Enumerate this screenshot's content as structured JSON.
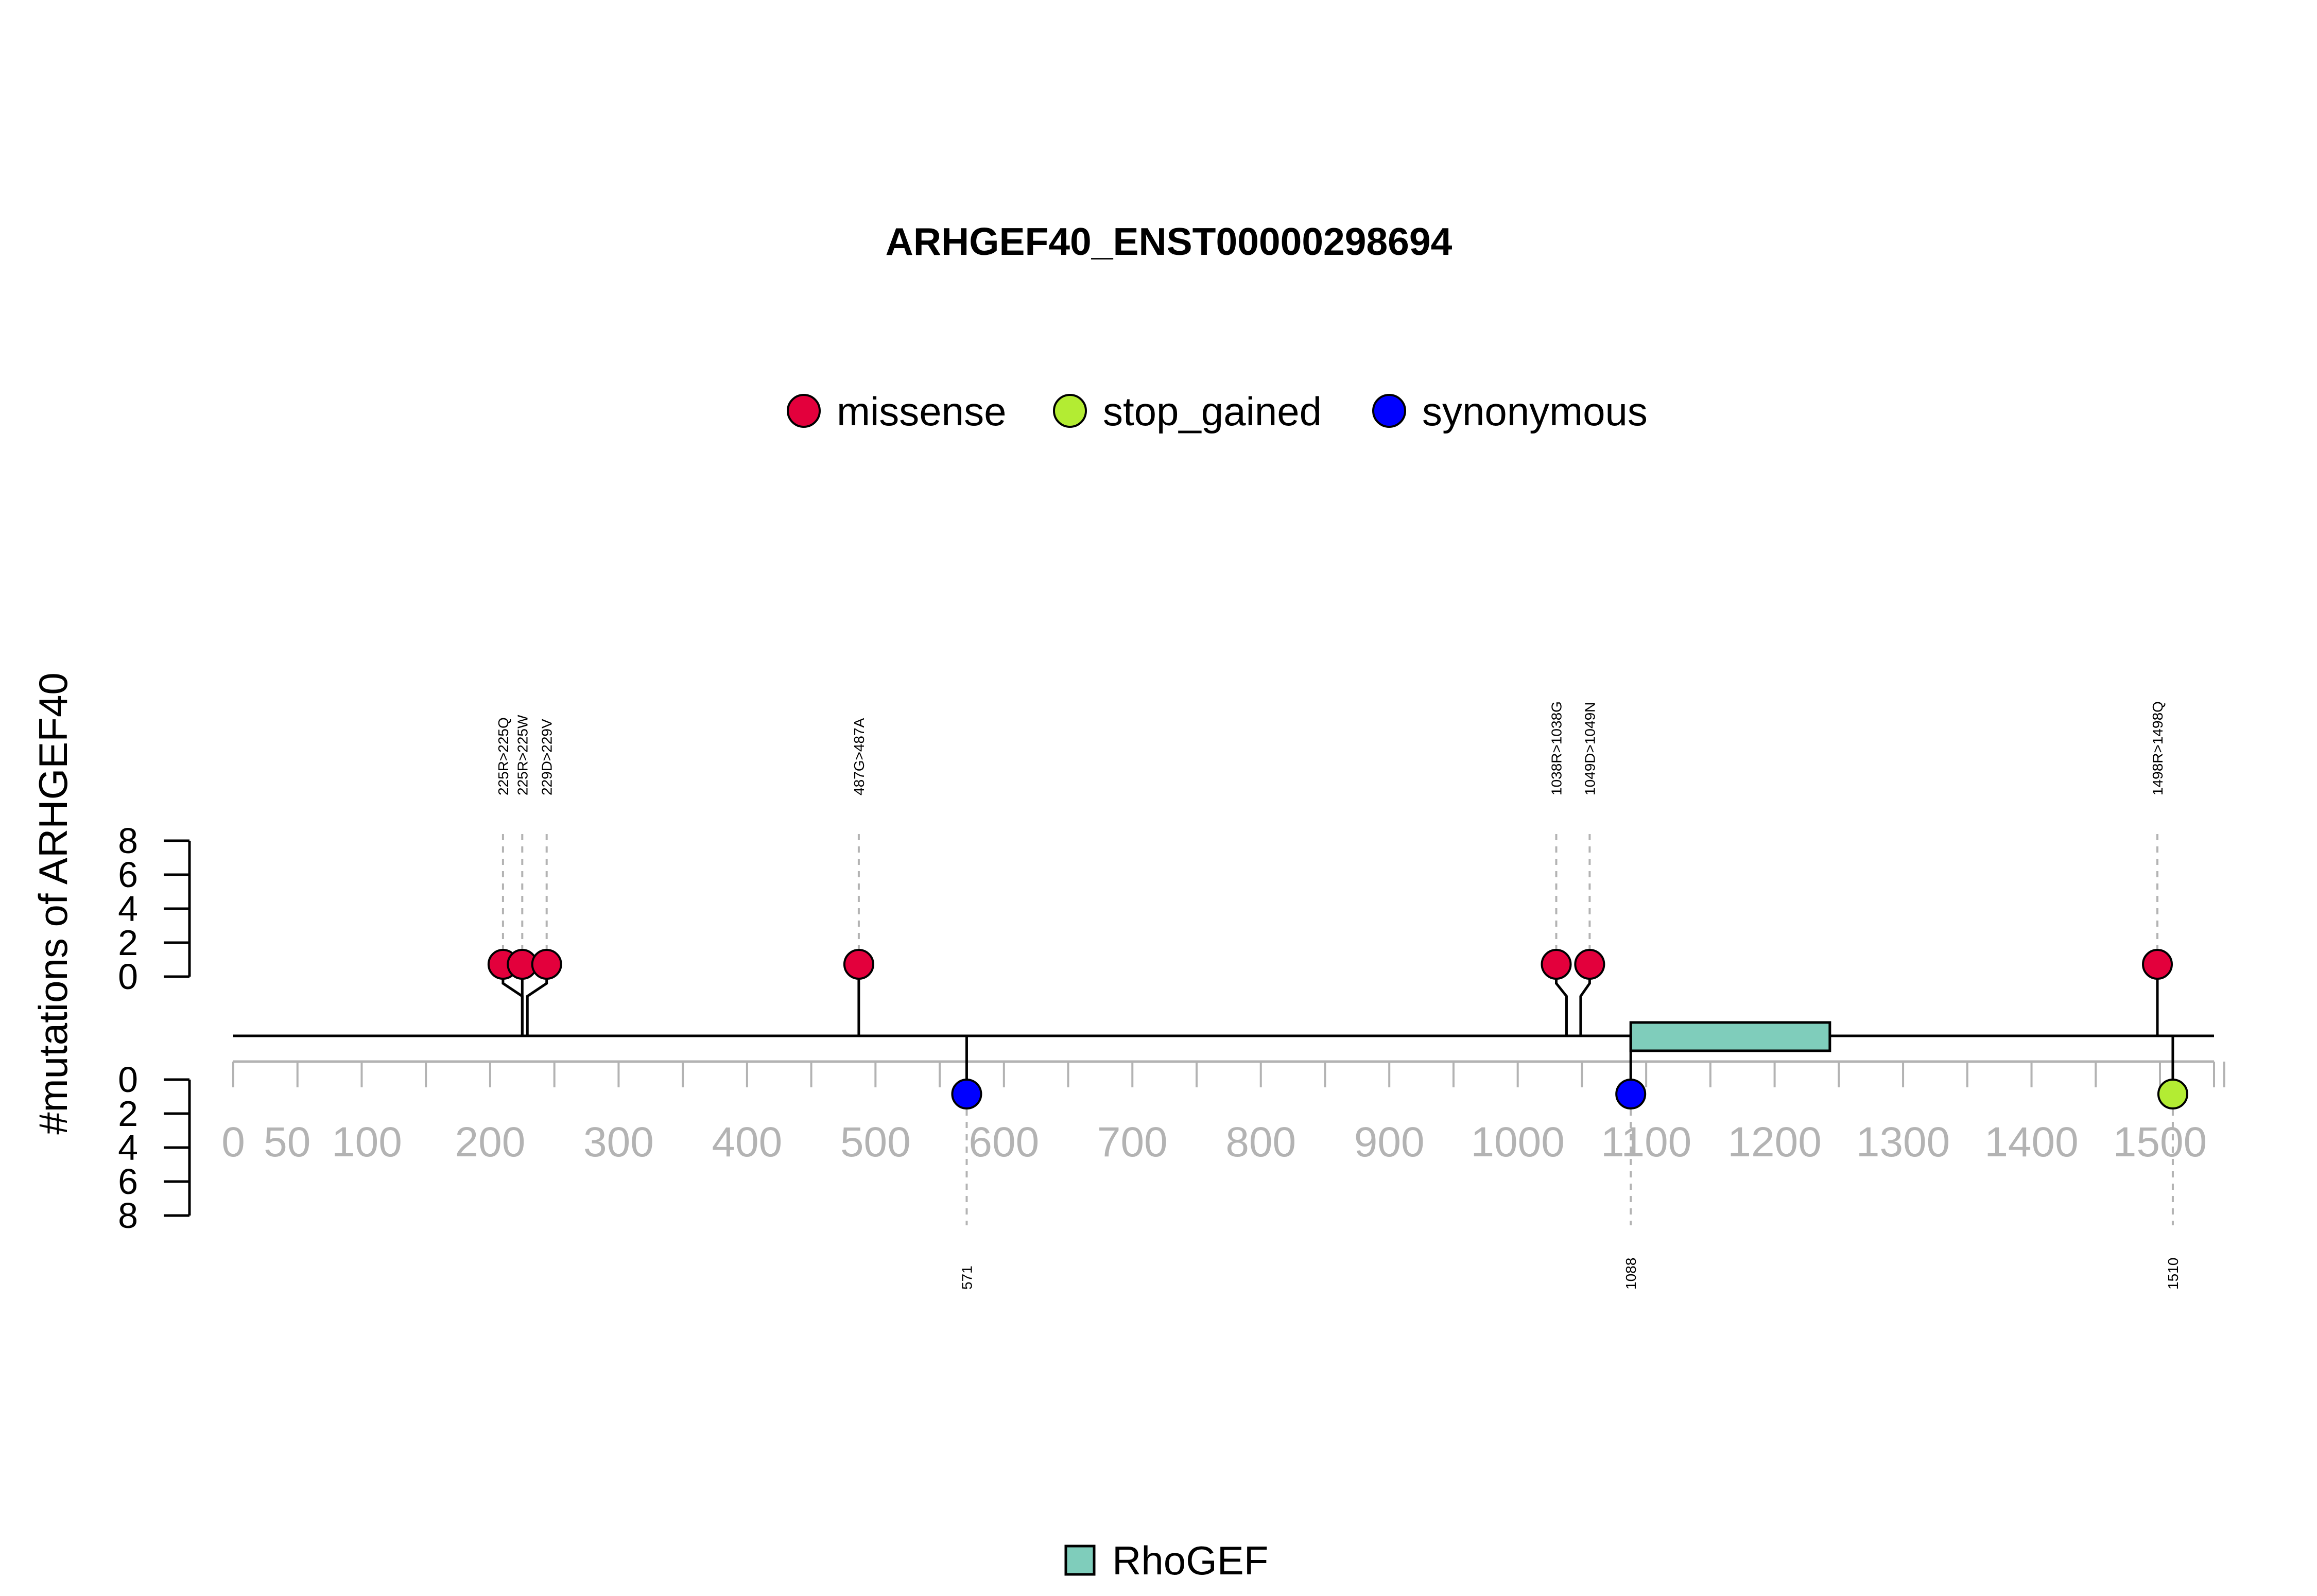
{
  "chart_data": {
    "type": "lollipop",
    "title": "ARHGEF40_ENST00000298694",
    "ylabel": "#mutations of ARHGEF40",
    "legend": [
      {
        "name": "missense",
        "color": "#e3003c"
      },
      {
        "name": "stop_gained",
        "color": "#b3ec33"
      },
      {
        "name": "synonymous",
        "color": "#0000ff"
      }
    ],
    "x_ticks": [
      0,
      50,
      100,
      200,
      300,
      400,
      500,
      600,
      700,
      800,
      900,
      1000,
      1100,
      1200,
      1300,
      1400,
      1500
    ],
    "x_range": [
      0,
      1550
    ],
    "y_ticks_top": [
      0,
      2,
      4,
      6,
      8
    ],
    "y_ticks_bottom": [
      0,
      2,
      4,
      6,
      8
    ],
    "protein_length": 1550,
    "domains": [
      {
        "name": "RhoGEF",
        "start": 1088,
        "end": 1243,
        "color": "#7fcdbb"
      }
    ],
    "top_mutations": [
      {
        "label": "225R>225Q",
        "position": 225,
        "count": 1,
        "type": "missense",
        "display_position": 210
      },
      {
        "label": "225R>225W",
        "position": 225,
        "count": 1,
        "type": "missense",
        "display_position": 225
      },
      {
        "label": "229D>229V",
        "position": 229,
        "count": 1,
        "type": "missense",
        "display_position": 244
      },
      {
        "label": "487G>487A",
        "position": 487,
        "count": 1,
        "type": "missense",
        "display_position": 487
      },
      {
        "label": "1038R>1038G",
        "position": 1038,
        "count": 1,
        "type": "missense",
        "display_position": 1030
      },
      {
        "label": "1049D>1049N",
        "position": 1049,
        "count": 1,
        "type": "missense",
        "display_position": 1056
      },
      {
        "label": "1498R>1498Q",
        "position": 1498,
        "count": 1,
        "type": "missense",
        "display_position": 1498
      }
    ],
    "bottom_mutations": [
      {
        "label": "571",
        "position": 571,
        "count": 1,
        "type": "synonymous"
      },
      {
        "label": "1088",
        "position": 1088,
        "count": 1,
        "type": "synonymous"
      },
      {
        "label": "1510",
        "position": 1510,
        "count": 1,
        "type": "stop_gained"
      }
    ]
  }
}
